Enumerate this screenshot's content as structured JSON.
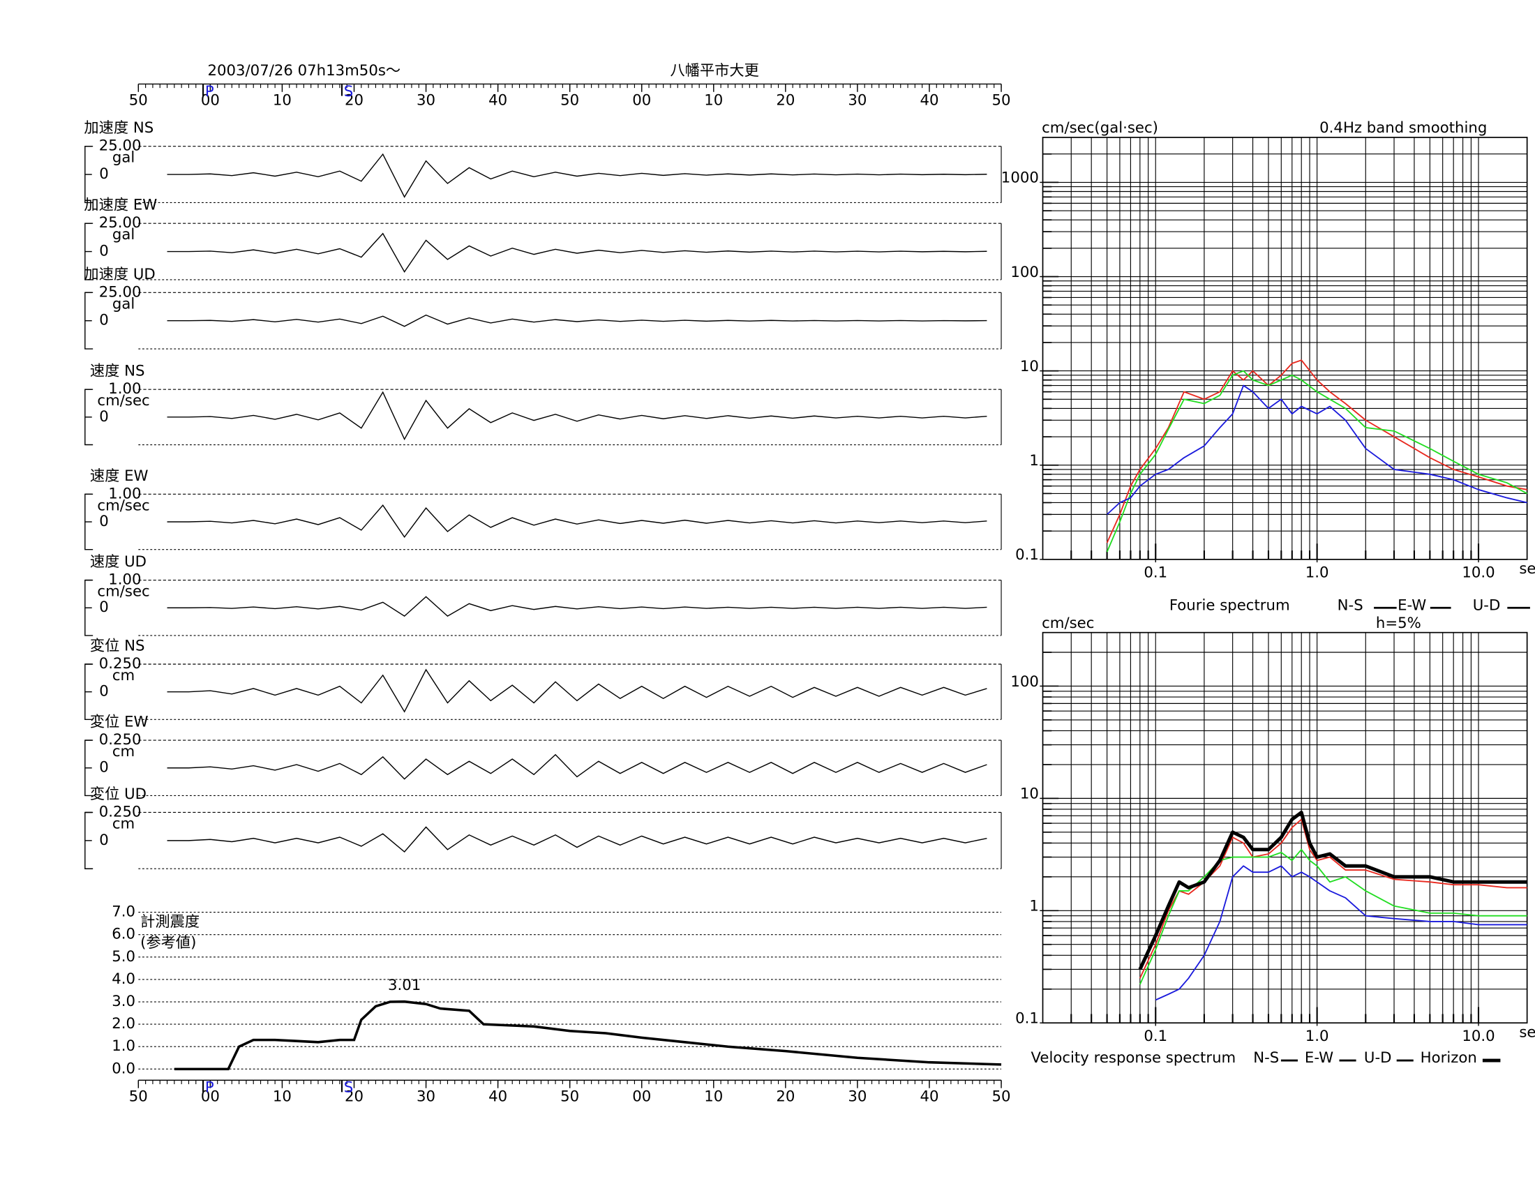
{
  "chart_data": [
    {
      "type": "waveform",
      "title": "2003/07/26  07h13m50s〜",
      "station": "八幡平市大更",
      "xlim": [
        -10,
        110
      ],
      "xticks": [
        {
          "value": -10,
          "label": "50"
        },
        {
          "value": 0,
          "label": "00"
        },
        10,
        20,
        30,
        40,
        50,
        {
          "value": 60,
          "label": "00"
        },
        {
          "value": 70,
          "label": "10"
        },
        {
          "value": 80,
          "label": "20"
        },
        {
          "value": 90,
          "label": "30"
        },
        {
          "value": 100,
          "label": "40"
        },
        {
          "value": 110,
          "label": "50"
        }
      ],
      "minor_tick_step": 1,
      "phases": [
        {
          "label": "P",
          "value": -1
        },
        {
          "label": "S",
          "value": 18.3
        }
      ],
      "x": [
        -6,
        -3,
        0,
        3,
        6,
        9,
        12,
        15,
        18,
        21,
        24,
        27,
        30,
        33,
        36,
        39,
        42,
        45,
        48,
        51,
        54,
        57,
        60,
        63,
        66,
        69,
        72,
        75,
        78,
        81,
        84,
        87,
        90,
        93,
        96,
        99,
        102,
        105,
        108
      ],
      "series": [
        {
          "name": "加速度 NS",
          "unit": "gal",
          "color": "#000000",
          "ylim": [
            -25,
            25
          ],
          "yticks": [
            0,
            {
              "value": 25,
              "label": "25.00"
            }
          ],
          "values": [
            0,
            0,
            0.5,
            -1,
            1.5,
            -1.5,
            2,
            -2,
            3,
            -6,
            18,
            -20,
            12,
            -8,
            6,
            -4,
            3,
            -2,
            2,
            -1.5,
            1,
            -1,
            1,
            -0.8,
            0.7,
            -0.6,
            0.5,
            -0.5,
            0.5,
            -0.4,
            0.4,
            -0.3,
            0.3,
            -0.3,
            0.3,
            -0.2,
            0.2,
            -0.2,
            0.2
          ]
        },
        {
          "name": "加速度 EW",
          "unit": "gal",
          "color": "#000000",
          "ylim": [
            -25,
            25
          ],
          "yticks": [
            0,
            {
              "value": 25,
              "label": "25.00"
            }
          ],
          "values": [
            0,
            0,
            0.4,
            -1,
            1.5,
            -1.5,
            2,
            -2,
            2.5,
            -5,
            16,
            -18,
            10,
            -7,
            5,
            -4,
            3,
            -2.5,
            2,
            -1.5,
            1.2,
            -1,
            1,
            -0.8,
            0.7,
            -0.6,
            0.5,
            -0.5,
            0.4,
            -0.4,
            0.4,
            -0.3,
            0.3,
            -0.3,
            0.3,
            -0.2,
            0.2,
            -0.2,
            0.2
          ]
        },
        {
          "name": "加速度 UD",
          "unit": "gal",
          "color": "#000000",
          "ylim": [
            -25,
            25
          ],
          "yticks": [
            0,
            {
              "value": 25,
              "label": "25.00"
            }
          ],
          "values": [
            0,
            0,
            0.3,
            -0.6,
            1,
            -1,
            1.2,
            -1.2,
            1.5,
            -2.5,
            4,
            -5,
            5,
            -3,
            2.5,
            -2,
            1.5,
            -1.2,
            1,
            -0.8,
            0.7,
            -0.6,
            0.5,
            -0.5,
            0.4,
            -0.4,
            0.3,
            -0.3,
            0.3,
            -0.2,
            0.2,
            -0.2,
            0.2,
            -0.2,
            0.2,
            -0.2,
            0.1,
            -0.1,
            0.1
          ]
        },
        {
          "name": "速度 NS",
          "unit": "cm/sec",
          "color": "#000000",
          "ylim": [
            -1,
            1
          ],
          "yticks": [
            0,
            {
              "value": 1,
              "label": "1.00"
            }
          ],
          "values": [
            0,
            0,
            0.02,
            -0.05,
            0.06,
            -0.08,
            0.1,
            -0.1,
            0.15,
            -0.4,
            0.9,
            -0.8,
            0.6,
            -0.4,
            0.3,
            -0.2,
            0.15,
            -0.12,
            0.1,
            -0.15,
            0.08,
            -0.07,
            0.06,
            -0.06,
            0.05,
            -0.05,
            0.05,
            -0.04,
            0.04,
            -0.04,
            0.04,
            -0.03,
            0.03,
            -0.03,
            0.03,
            -0.03,
            0.03,
            -0.03,
            0.03
          ]
        },
        {
          "name": "速度 EW",
          "unit": "cm/sec",
          "color": "#000000",
          "ylim": [
            -1,
            1
          ],
          "yticks": [
            0,
            {
              "value": 1,
              "label": "1.00"
            }
          ],
          "values": [
            0,
            0,
            0.02,
            -0.04,
            0.05,
            -0.07,
            0.1,
            -0.1,
            0.15,
            -0.3,
            0.6,
            -0.55,
            0.5,
            -0.35,
            0.25,
            -0.2,
            0.15,
            -0.12,
            0.1,
            -0.08,
            0.07,
            -0.06,
            0.05,
            -0.05,
            0.06,
            -0.05,
            0.05,
            -0.04,
            0.04,
            -0.04,
            0.04,
            -0.04,
            0.03,
            -0.03,
            0.03,
            -0.03,
            0.03,
            -0.03,
            0.03
          ]
        },
        {
          "name": "速度 UD",
          "unit": "cm/sec",
          "color": "#000000",
          "ylim": [
            -1,
            1
          ],
          "yticks": [
            0,
            {
              "value": 1,
              "label": "1.00"
            }
          ],
          "values": [
            0,
            0,
            0.01,
            -0.02,
            0.03,
            -0.03,
            0.04,
            -0.04,
            0.05,
            -0.08,
            0.2,
            -0.3,
            0.4,
            -0.3,
            0.15,
            -0.1,
            0.08,
            -0.06,
            0.05,
            -0.04,
            0.04,
            -0.03,
            0.03,
            -0.03,
            0.03,
            -0.02,
            0.02,
            -0.02,
            0.02,
            -0.02,
            0.02,
            -0.02,
            0.02,
            -0.02,
            0.02,
            -0.02,
            0.02,
            -0.02,
            0.02
          ]
        },
        {
          "name": "変位 NS",
          "unit": "cm",
          "color": "#000000",
          "ylim": [
            -0.25,
            0.25
          ],
          "yticks": [
            0,
            {
              "value": 0.25,
              "label": "0.250"
            }
          ],
          "values": [
            0,
            0,
            0.01,
            -0.02,
            0.03,
            -0.03,
            0.03,
            -0.03,
            0.05,
            -0.1,
            0.15,
            -0.18,
            0.2,
            -0.1,
            0.1,
            -0.08,
            0.06,
            -0.1,
            0.09,
            -0.08,
            0.07,
            -0.06,
            0.05,
            -0.06,
            0.05,
            -0.05,
            0.05,
            -0.04,
            0.05,
            -0.05,
            0.04,
            -0.04,
            0.04,
            -0.04,
            0.04,
            -0.03,
            0.04,
            -0.03,
            0.03
          ]
        },
        {
          "name": "変位 EW",
          "unit": "cm",
          "color": "#000000",
          "ylim": [
            -0.25,
            0.25
          ],
          "yticks": [
            0,
            {
              "value": 0.25,
              "label": "0.250"
            }
          ],
          "values": [
            0,
            0,
            0.01,
            -0.01,
            0.02,
            -0.02,
            0.03,
            -0.03,
            0.04,
            -0.06,
            0.1,
            -0.1,
            0.08,
            -0.06,
            0.06,
            -0.05,
            0.08,
            -0.06,
            0.12,
            -0.08,
            0.06,
            -0.05,
            0.05,
            -0.05,
            0.05,
            -0.04,
            0.05,
            -0.04,
            0.05,
            -0.05,
            0.05,
            -0.04,
            0.05,
            -0.04,
            0.04,
            -0.04,
            0.04,
            -0.04,
            0.03
          ]
        },
        {
          "name": "変位 UD",
          "unit": "cm",
          "color": "#000000",
          "ylim": [
            -0.25,
            0.25
          ],
          "yticks": [
            0,
            {
              "value": 0.25,
              "label": "0.250"
            }
          ],
          "values": [
            0,
            0,
            0.01,
            -0.01,
            0.02,
            -0.02,
            0.02,
            -0.02,
            0.03,
            -0.05,
            0.06,
            -0.1,
            0.12,
            -0.08,
            0.05,
            -0.04,
            0.04,
            -0.04,
            0.05,
            -0.06,
            0.04,
            -0.04,
            0.04,
            -0.03,
            0.03,
            -0.03,
            0.03,
            -0.03,
            0.03,
            -0.03,
            0.03,
            -0.02,
            0.02,
            -0.02,
            0.02,
            -0.02,
            0.02,
            -0.02,
            0.02
          ]
        }
      ]
    },
    {
      "type": "line",
      "ylabel": [
        "計測震度",
        "(参考値)"
      ],
      "color": "#000000",
      "xlim": [
        -10,
        110
      ],
      "xticks": [
        {
          "value": -10,
          "label": "50"
        },
        {
          "value": 0,
          "label": "00"
        },
        10,
        20,
        30,
        40,
        50,
        {
          "value": 60,
          "label": "00"
        },
        {
          "value": 70,
          "label": "10"
        },
        {
          "value": 80,
          "label": "20"
        },
        {
          "value": 90,
          "label": "30"
        },
        {
          "value": 100,
          "label": "40"
        },
        {
          "value": 110,
          "label": "50"
        }
      ],
      "minor_tick_step": 1,
      "phases": [
        {
          "label": "P",
          "value": -1
        },
        {
          "label": "S",
          "value": 18.3
        }
      ],
      "ylim": [
        -0.5,
        7
      ],
      "yticks": [
        {
          "value": 0,
          "label": "0.0"
        },
        {
          "value": 1,
          "label": "1.0"
        },
        {
          "value": 2,
          "label": "2.0"
        },
        {
          "value": 3,
          "label": "3.0"
        },
        {
          "value": 4,
          "label": "4.0"
        },
        {
          "value": 5,
          "label": "5.0"
        },
        {
          "value": 6,
          "label": "6.0"
        },
        {
          "value": 7,
          "label": "7.0"
        }
      ],
      "grid": true,
      "x": [
        -5,
        2.5,
        4,
        6,
        9,
        12,
        15,
        18,
        20,
        21,
        23,
        25,
        27,
        30,
        32,
        36,
        38,
        45,
        50,
        55,
        60,
        66,
        72,
        80,
        90,
        100,
        110
      ],
      "values": [
        0,
        0,
        1.0,
        1.3,
        1.3,
        1.25,
        1.2,
        1.3,
        1.3,
        2.2,
        2.8,
        3.0,
        3.01,
        2.9,
        2.7,
        2.6,
        2.0,
        1.9,
        1.7,
        1.6,
        1.4,
        1.2,
        1.0,
        0.8,
        0.5,
        0.3,
        0.2
      ],
      "value_labels": [
        null,
        null,
        null,
        null,
        null,
        null,
        null,
        null,
        null,
        null,
        null,
        null,
        "3.01",
        null,
        null,
        null,
        null,
        null,
        null,
        null,
        null,
        null,
        null,
        null,
        null,
        null,
        null
      ]
    },
    {
      "type": "loglog",
      "title": "Fourie spectrum",
      "ylabel": "cm/sec(gal·sec)",
      "xlabel": "sec",
      "note": "0.4Hz band smoothing",
      "xlim": [
        0.02,
        20
      ],
      "ylim": [
        0.1,
        3000
      ],
      "xticks": [
        0.1,
        {
          "value": 1,
          "label": "1.0"
        },
        {
          "value": 10,
          "label": "10.0"
        }
      ],
      "yticks": [
        0.1,
        1,
        10,
        100,
        1000
      ],
      "grid": true,
      "x": [
        0.05,
        0.06,
        0.07,
        0.08,
        0.1,
        0.12,
        0.15,
        0.2,
        0.25,
        0.3,
        0.35,
        0.4,
        0.5,
        0.6,
        0.7,
        0.8,
        1,
        1.2,
        1.5,
        2,
        3,
        5,
        7,
        10,
        15,
        20
      ],
      "series": [
        {
          "name": "N-S",
          "color": "#e8281e",
          "values": [
            0.15,
            0.3,
            0.6,
            0.9,
            1.5,
            2.5,
            6,
            5,
            6,
            10,
            8,
            10,
            7,
            9,
            12,
            13,
            8,
            6,
            4.5,
            3,
            2,
            1.2,
            0.9,
            0.75,
            0.6,
            0.55
          ]
        },
        {
          "name": "E-W",
          "color": "#22dd22",
          "values": [
            0.12,
            0.25,
            0.5,
            0.8,
            1.3,
            2.4,
            5,
            4.5,
            5.5,
            9,
            10,
            8,
            7,
            8,
            9,
            8,
            6,
            5,
            4,
            2.5,
            2.3,
            1.5,
            1.1,
            0.8,
            0.65,
            0.5
          ]
        },
        {
          "name": "U-D",
          "color": "#1a1adc",
          "values": [
            0.3,
            0.4,
            0.45,
            0.6,
            0.8,
            0.9,
            1.2,
            1.6,
            2.5,
            3.5,
            7,
            6,
            4,
            5,
            3.5,
            4.2,
            3.5,
            4.2,
            3,
            1.5,
            0.9,
            0.8,
            0.7,
            0.55,
            0.45,
            0.4
          ]
        }
      ]
    },
    {
      "type": "loglog",
      "title": "Velocity response spectrum",
      "ylabel": "cm/sec",
      "xlabel": "sec",
      "note": "h=5%",
      "xlim": [
        0.02,
        20
      ],
      "ylim": [
        0.1,
        300
      ],
      "xticks": [
        0.1,
        {
          "value": 1,
          "label": "1.0"
        },
        {
          "value": 10,
          "label": "10.0"
        }
      ],
      "yticks": [
        0.1,
        1,
        10,
        100
      ],
      "grid": true,
      "x": [
        0.08,
        0.1,
        0.12,
        0.14,
        0.16,
        0.2,
        0.25,
        0.3,
        0.35,
        0.4,
        0.5,
        0.6,
        0.7,
        0.8,
        0.9,
        1,
        1.2,
        1.5,
        2,
        3,
        5,
        7,
        10,
        15,
        20
      ],
      "series": [
        {
          "name": "N-S",
          "color": "#e8281e",
          "values": [
            0.25,
            0.5,
            1,
            1.5,
            1.4,
            1.8,
            2.5,
            4.5,
            4,
            3,
            3.2,
            4,
            5.5,
            6.5,
            3.5,
            2.8,
            3,
            2.3,
            2.3,
            1.9,
            1.8,
            1.7,
            1.7,
            1.6,
            1.6
          ]
        },
        {
          "name": "E-W",
          "color": "#22dd22",
          "values": [
            0.22,
            0.45,
            0.9,
            1.5,
            1.5,
            2,
            2.8,
            3,
            3,
            3,
            3,
            3.3,
            2.8,
            3.5,
            2.8,
            2.5,
            1.8,
            2,
            1.5,
            1.1,
            0.95,
            0.95,
            0.9,
            0.9,
            0.9
          ]
        },
        {
          "name": "U-D",
          "color": "#1a1adc",
          "values": [
            null,
            0.16,
            0.18,
            0.2,
            0.25,
            0.4,
            0.8,
            2,
            2.5,
            2.2,
            2.2,
            2.5,
            2,
            2.2,
            2,
            1.8,
            1.5,
            1.3,
            0.9,
            0.85,
            0.8,
            0.8,
            0.75,
            0.75,
            0.75
          ]
        },
        {
          "name": "Horizon",
          "color": "#000000",
          "line_width": 3.5,
          "values": [
            0.3,
            0.6,
            1.1,
            1.8,
            1.6,
            1.8,
            2.8,
            5,
            4.5,
            3.5,
            3.5,
            4.5,
            6.5,
            7.5,
            4,
            3,
            3.2,
            2.5,
            2.5,
            2,
            2,
            1.8,
            1.8,
            1.8,
            1.8
          ]
        }
      ]
    }
  ]
}
